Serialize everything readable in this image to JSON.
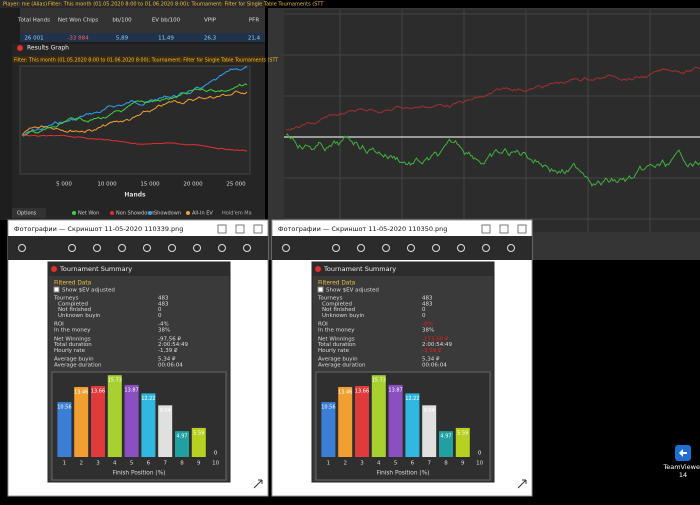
{
  "hm_window": {
    "player": "Player: me (Alias)",
    "filter": "Filter: This month (01.05.2020 8:00 to 01.06.2020 8:00); Tournament: Filter for Single Table Tournaments (STT",
    "columns": [
      "Total Hands",
      "Net Won Chips",
      "bb/100",
      "EV bb/100",
      "VPIP",
      "PFR"
    ],
    "row": [
      "26 001",
      "-33 884",
      "5,89",
      "11,49",
      "26,3",
      "21,4"
    ],
    "graph_title": "Results Graph",
    "graph_filter": "Filter: This month (01.05.2020 8:00 to 01.06.2020 8:00); Tournament: Filter for Single Table Tournaments (STT",
    "x_ticks": [
      "5 000",
      "10 000",
      "15 000",
      "20 000",
      "25 000"
    ],
    "x_label": "Hands",
    "legend": [
      {
        "name": "Net Won",
        "color": "#40d040"
      },
      {
        "name": "Non Showdown",
        "color": "#e03030"
      },
      {
        "name": "Showdown",
        "color": "#30a0f0"
      },
      {
        "name": "All-In EV",
        "color": "#f0a030"
      }
    ],
    "options": "Options",
    "footer": "Hold'em Ma"
  },
  "photo_windows": [
    {
      "title": "Фотографии — Скриншот 11-05-2020 110339.png",
      "summary_title": "Tournament Summary",
      "section": "Filtered Data",
      "checkbox": "Show $EV adjusted",
      "rows": [
        {
          "label": "Tourneys",
          "value": "483"
        },
        {
          "label": "Completed",
          "value": "483"
        },
        {
          "label": "Not finished",
          "value": "0"
        },
        {
          "label": "Unknown buyin",
          "value": "0"
        },
        {
          "label": "ROI",
          "value": "-4%"
        },
        {
          "label": "In the money",
          "value": "38%"
        },
        {
          "label": "Net Winnings",
          "value": "-97,56 ₽"
        },
        {
          "label": "Total duration",
          "value": "2:00:54:49"
        },
        {
          "label": "Hourly rate",
          "value": "-1,39 ₽"
        },
        {
          "label": "Average buyin",
          "value": "5,34 ₽"
        },
        {
          "label": "Average duration",
          "value": "00:06:04"
        }
      ],
      "chart": {
        "type": "bar",
        "x_label": "Finish Position (%)",
        "categories": [
          "1",
          "2",
          "3",
          "4",
          "5",
          "6",
          "7",
          "8",
          "9",
          "10"
        ],
        "values": [
          10.56,
          13.46,
          13.66,
          15.73,
          13.87,
          12.22,
          9.94,
          4.97,
          5.59,
          0
        ],
        "colors": [
          "#3a7fd5",
          "#f0a030",
          "#e03a3a",
          "#a8d030",
          "#8a4fc0",
          "#30b8e0",
          "#e0e0e0",
          "#20a0a0",
          "#b8d020",
          "#888888"
        ]
      }
    },
    {
      "title": "Фотографии — Скриншот 11-05-2020 110350.png",
      "summary_title": "Tournament Summary",
      "section": "Filtered Data",
      "checkbox": "Show $EV adjusted",
      "rows": [
        {
          "label": "Tourneys",
          "value": "483"
        },
        {
          "label": "Completed",
          "value": "483"
        },
        {
          "label": "Not finished",
          "value": "0"
        },
        {
          "label": "Unknown buyin",
          "value": "0"
        },
        {
          "label": "ROI",
          "value": "-8%",
          "color": "#e02020"
        },
        {
          "label": "In the money",
          "value": "38%"
        },
        {
          "label": "Net Winnings",
          "value": "-173,60 ₽",
          "color": "#e02020"
        },
        {
          "label": "Total duration",
          "value": "2:00:54:49"
        },
        {
          "label": "Hourly rate",
          "value": "-3,59 ₽",
          "color": "#e02020"
        },
        {
          "label": "Average buyin",
          "value": "5,34 ₽"
        },
        {
          "label": "Average duration",
          "value": "00:06:04"
        }
      ],
      "chart": {
        "type": "bar",
        "x_label": "Finish Position (%)",
        "categories": [
          "1",
          "2",
          "3",
          "4",
          "5",
          "6",
          "7",
          "8",
          "9",
          "10"
        ],
        "values": [
          10.56,
          13.46,
          13.66,
          15.73,
          13.87,
          12.22,
          9.94,
          4.97,
          5.59,
          0
        ],
        "colors": [
          "#3a7fd5",
          "#f0a030",
          "#e03a3a",
          "#a8d030",
          "#8a4fc0",
          "#30b8e0",
          "#e0e0e0",
          "#20a0a0",
          "#b8d020",
          "#888888"
        ]
      }
    }
  ],
  "desktop_icon": [
    "TeamViewer",
    "14"
  ]
}
